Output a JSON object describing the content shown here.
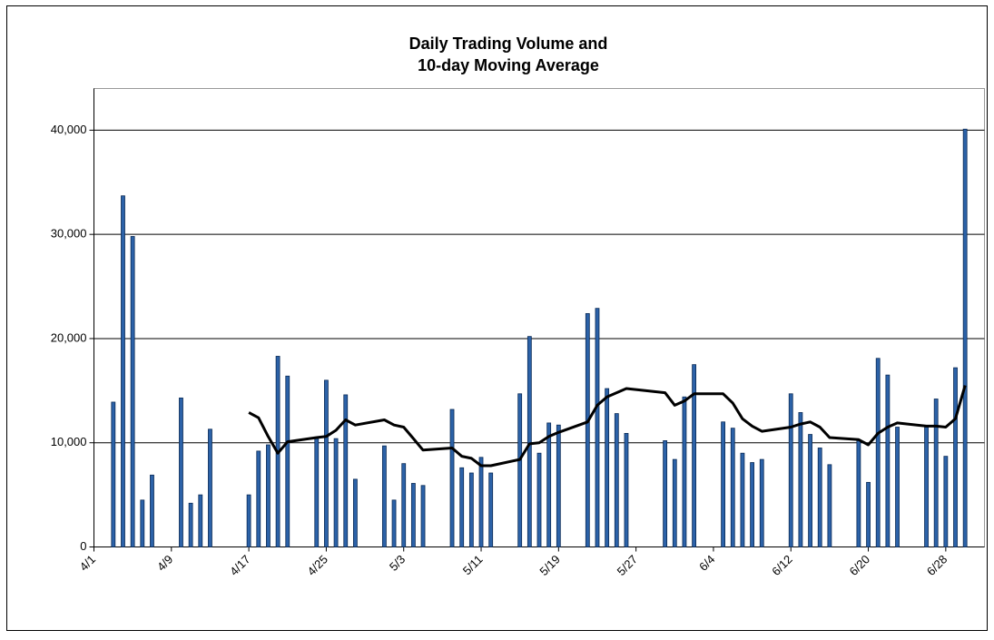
{
  "chart_data": {
    "type": "bar-line",
    "title": [
      "Daily Trading Volume and",
      "10-day Moving Average"
    ],
    "x": [
      "4/3",
      "4/4",
      "4/5",
      "4/6",
      "4/7",
      "4/10",
      "4/11",
      "4/12",
      "4/13",
      "4/17",
      "4/18",
      "4/19",
      "4/20",
      "4/21",
      "4/24",
      "4/25",
      "4/26",
      "4/27",
      "4/28",
      "5/1",
      "5/2",
      "5/3",
      "5/4",
      "5/5",
      "5/8",
      "5/9",
      "5/10",
      "5/11",
      "5/12",
      "5/15",
      "5/16",
      "5/17",
      "5/18",
      "5/19",
      "5/22",
      "5/23",
      "5/24",
      "5/25",
      "5/26",
      "5/30",
      "5/31",
      "6/1",
      "6/2",
      "6/5",
      "6/6",
      "6/7",
      "6/8",
      "6/9",
      "6/12",
      "6/13",
      "6/14",
      "6/15",
      "6/16",
      "6/19",
      "6/20",
      "6/21",
      "6/22",
      "6/23",
      "6/26",
      "6/27",
      "6/28",
      "6/29",
      "6/30"
    ],
    "series": [
      {
        "type": "bar",
        "color": "#2c62a8",
        "values": [
          13900,
          33700,
          29800,
          4500,
          6900,
          14300,
          4200,
          5000,
          11300,
          5000,
          9200,
          9800,
          18300,
          16400,
          10400,
          16000,
          10400,
          14600,
          6500,
          9700,
          4500,
          8000,
          6100,
          5900,
          13200,
          7600,
          7100,
          8600,
          7100,
          14700,
          20200,
          9000,
          11900,
          11700,
          22400,
          22900,
          15200,
          12800,
          10900,
          10200,
          8400,
          14400,
          17500,
          12000,
          11400,
          9000,
          8100,
          8400,
          14700,
          12900,
          10800,
          9500,
          7900,
          10300,
          6200,
          18100,
          16500,
          11500,
          11500,
          14200,
          8700,
          17200,
          40100
        ]
      },
      {
        "type": "line",
        "color": "#000000",
        "values": [
          null,
          null,
          null,
          null,
          null,
          null,
          null,
          null,
          null,
          12900,
          12400,
          10600,
          9000,
          10100,
          10500,
          10600,
          11200,
          12200,
          11700,
          12200,
          11700,
          11500,
          10400,
          9300,
          9500,
          8700,
          8500,
          7800,
          7800,
          8400,
          9900,
          10000,
          10600,
          11000,
          12000,
          13600,
          14400,
          14800,
          15200,
          14800,
          13600,
          14000,
          14700,
          14700,
          13800,
          12300,
          11600,
          11100,
          11500,
          11800,
          12000,
          11500,
          10500,
          10300,
          9800,
          10900,
          11500,
          11900,
          11600,
          11600,
          11500,
          12300,
          15500
        ]
      }
    ],
    "xlim": [
      "4/1",
      "7/2"
    ],
    "xticks": [
      "4/1",
      "4/9",
      "4/17",
      "4/25",
      "5/3",
      "5/11",
      "5/19",
      "5/27",
      "6/4",
      "6/12",
      "6/20",
      "6/28"
    ],
    "ylim": [
      0,
      44000
    ],
    "yticks": [
      0,
      {
        "value": 10000,
        "label": "10,000"
      },
      {
        "value": 20000,
        "label": "20,000"
      },
      {
        "value": 30000,
        "label": "30,000"
      },
      {
        "value": 40000,
        "label": "40,000"
      }
    ],
    "grid": true
  }
}
